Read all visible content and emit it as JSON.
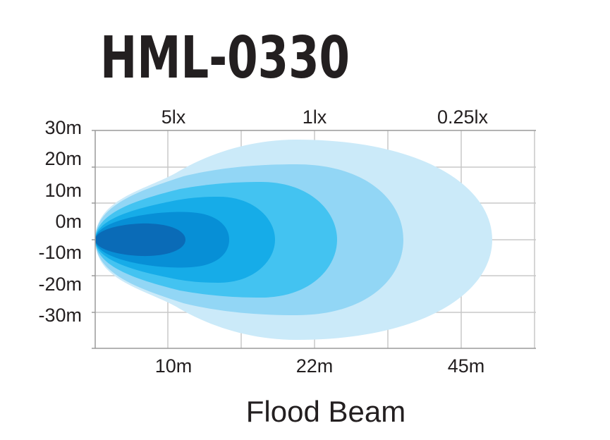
{
  "chart_data": {
    "type": "area",
    "title": "HML-0330",
    "subtitle": "Flood Beam",
    "y_tick_labels": [
      "30m",
      "20m",
      "10m",
      "0m",
      "-10m",
      "-20m",
      "-30m"
    ],
    "top_labels": [
      "5lx",
      "1lx",
      "0.25lx"
    ],
    "bottom_labels": [
      "10m",
      "22m",
      "45m"
    ],
    "grid": true,
    "colors": {
      "zone_0_25lx": "#cbeaf9",
      "zone_0_5lx": "#92d6f5",
      "zone_1lx": "#43c3f1",
      "zone_2lx": "#16ace8",
      "zone_5lx": "#078fd6",
      "zone_10lx": "#0a6bb7",
      "grid": "#c8c8c8",
      "axis": "#9a9a9a",
      "title": "#231f20"
    }
  }
}
